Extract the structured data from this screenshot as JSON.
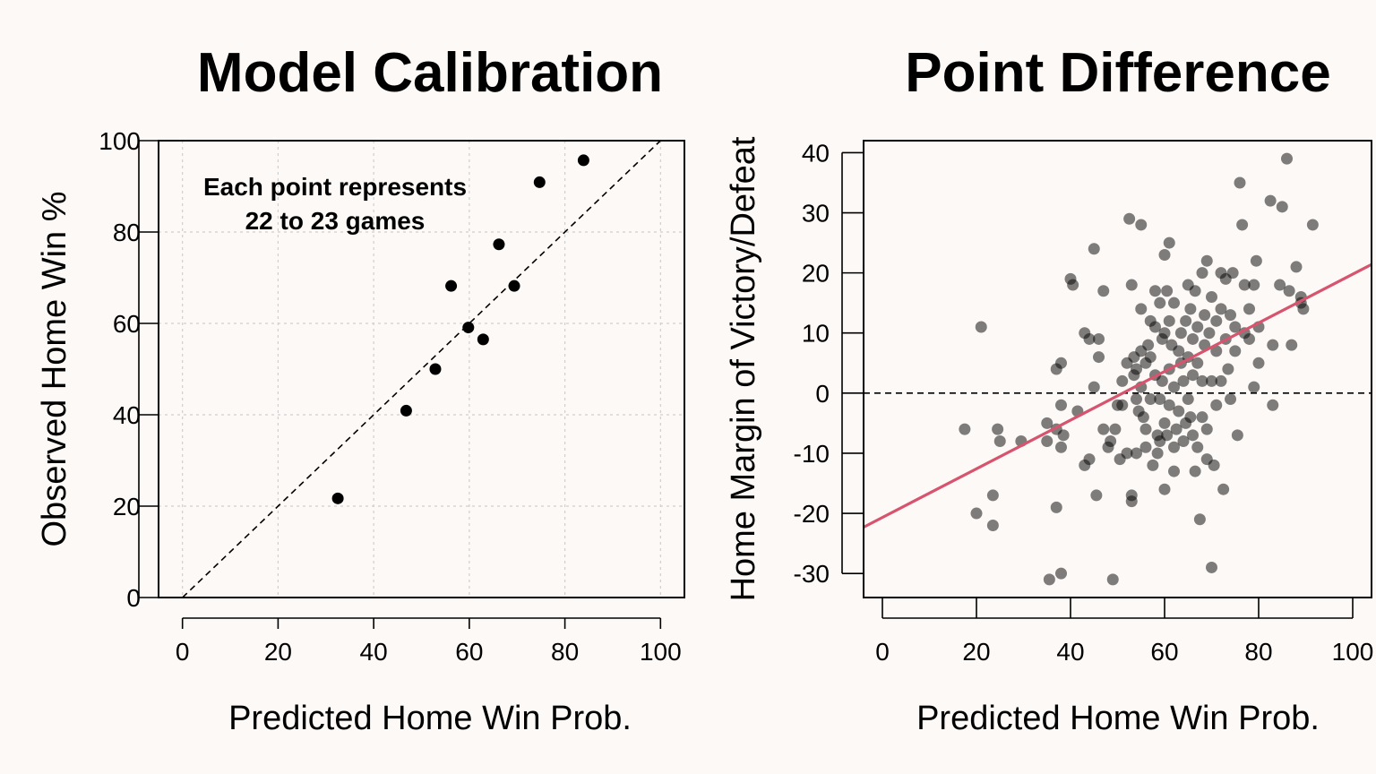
{
  "chart_data": [
    {
      "type": "scatter",
      "title": "Model Calibration",
      "xlabel": "Predicted Home Win Prob.",
      "ylabel": "Observed Home Win %",
      "xlim": [
        -5,
        105
      ],
      "ylim": [
        0,
        100
      ],
      "xticks": [
        0,
        20,
        40,
        60,
        80,
        100
      ],
      "yticks": [
        0,
        20,
        40,
        60,
        80,
        100
      ],
      "grid": true,
      "reference_line": "y = x (dashed)",
      "annotation": [
        "Each point represents",
        "22 to 23 games"
      ],
      "points": [
        {
          "x": 32.5,
          "y": 21.7
        },
        {
          "x": 46.8,
          "y": 40.9
        },
        {
          "x": 52.9,
          "y": 50.0
        },
        {
          "x": 56.2,
          "y": 68.2
        },
        {
          "x": 59.8,
          "y": 59.1
        },
        {
          "x": 62.9,
          "y": 56.5
        },
        {
          "x": 66.2,
          "y": 77.3
        },
        {
          "x": 69.4,
          "y": 68.2
        },
        {
          "x": 74.7,
          "y": 90.9
        },
        {
          "x": 83.9,
          "y": 95.7
        }
      ]
    },
    {
      "type": "scatter",
      "title": "Point Difference",
      "xlabel": "Predicted Home Win Prob.",
      "ylabel": "Home Margin of Victory/Defeat",
      "xlim": [
        -4,
        104
      ],
      "ylim": [
        -34,
        42
      ],
      "xticks": [
        0,
        20,
        40,
        60,
        80,
        100
      ],
      "yticks": [
        -30,
        -20,
        -10,
        0,
        10,
        20,
        30,
        40
      ],
      "grid": false,
      "reference_line": "y = 0 (dashed)",
      "fit_line": {
        "color": "#d6546e",
        "x": [
          -4,
          104
        ],
        "y": [
          -22.3,
          21.4
        ]
      },
      "points": [
        {
          "x": 17.5,
          "y": -6
        },
        {
          "x": 21,
          "y": 11
        },
        {
          "x": 20,
          "y": -20
        },
        {
          "x": 23.5,
          "y": -17
        },
        {
          "x": 23.5,
          "y": -22
        },
        {
          "x": 24.5,
          "y": -6
        },
        {
          "x": 25,
          "y": -8
        },
        {
          "x": 29.5,
          "y": -8
        },
        {
          "x": 35.5,
          "y": -31
        },
        {
          "x": 38,
          "y": -30
        },
        {
          "x": 35,
          "y": -5
        },
        {
          "x": 35,
          "y": -8
        },
        {
          "x": 37,
          "y": -19
        },
        {
          "x": 37,
          "y": -6
        },
        {
          "x": 37,
          "y": 4
        },
        {
          "x": 38,
          "y": 5
        },
        {
          "x": 38,
          "y": -2
        },
        {
          "x": 38,
          "y": -9
        },
        {
          "x": 38.5,
          "y": -7
        },
        {
          "x": 40,
          "y": 19
        },
        {
          "x": 40.5,
          "y": 18
        },
        {
          "x": 41.5,
          "y": -3
        },
        {
          "x": 43,
          "y": 10
        },
        {
          "x": 43,
          "y": -12
        },
        {
          "x": 44,
          "y": 9
        },
        {
          "x": 44,
          "y": -11
        },
        {
          "x": 45,
          "y": 24
        },
        {
          "x": 45,
          "y": 1
        },
        {
          "x": 45.5,
          "y": -17
        },
        {
          "x": 46,
          "y": 6
        },
        {
          "x": 46,
          "y": 9
        },
        {
          "x": 47,
          "y": 17
        },
        {
          "x": 47,
          "y": -6
        },
        {
          "x": 48,
          "y": -9
        },
        {
          "x": 48.5,
          "y": -8
        },
        {
          "x": 49,
          "y": -31
        },
        {
          "x": 49.5,
          "y": -6
        },
        {
          "x": 50,
          "y": -2
        },
        {
          "x": 50.5,
          "y": -11
        },
        {
          "x": 51,
          "y": -2
        },
        {
          "x": 51,
          "y": 2
        },
        {
          "x": 52,
          "y": 5
        },
        {
          "x": 52,
          "y": -10
        },
        {
          "x": 52.5,
          "y": 29
        },
        {
          "x": 53,
          "y": 18
        },
        {
          "x": 53,
          "y": -17
        },
        {
          "x": 53,
          "y": -18
        },
        {
          "x": 53.5,
          "y": 6
        },
        {
          "x": 53.5,
          "y": 3
        },
        {
          "x": 54,
          "y": 4
        },
        {
          "x": 54,
          "y": -1
        },
        {
          "x": 54,
          "y": -10
        },
        {
          "x": 54.5,
          "y": -3
        },
        {
          "x": 55,
          "y": 28
        },
        {
          "x": 55,
          "y": 14
        },
        {
          "x": 55,
          "y": 7
        },
        {
          "x": 55,
          "y": 1
        },
        {
          "x": 55.5,
          "y": -4
        },
        {
          "x": 56,
          "y": -9
        },
        {
          "x": 56,
          "y": -6
        },
        {
          "x": 56,
          "y": 5
        },
        {
          "x": 56.5,
          "y": 8
        },
        {
          "x": 57,
          "y": 12
        },
        {
          "x": 57,
          "y": -1
        },
        {
          "x": 57,
          "y": 6
        },
        {
          "x": 57.5,
          "y": -12
        },
        {
          "x": 58,
          "y": 17
        },
        {
          "x": 58,
          "y": 11
        },
        {
          "x": 58,
          "y": 3
        },
        {
          "x": 58.5,
          "y": -7
        },
        {
          "x": 58.5,
          "y": -10
        },
        {
          "x": 59,
          "y": 15
        },
        {
          "x": 59,
          "y": -8
        },
        {
          "x": 59,
          "y": -1
        },
        {
          "x": 59.5,
          "y": 2
        },
        {
          "x": 59.5,
          "y": 9
        },
        {
          "x": 60,
          "y": 23
        },
        {
          "x": 60,
          "y": -16
        },
        {
          "x": 60,
          "y": -5
        },
        {
          "x": 60,
          "y": 10
        },
        {
          "x": 60.5,
          "y": 17
        },
        {
          "x": 60.5,
          "y": -7
        },
        {
          "x": 61,
          "y": 25
        },
        {
          "x": 61,
          "y": 12
        },
        {
          "x": 61,
          "y": -2
        },
        {
          "x": 61,
          "y": 4
        },
        {
          "x": 61.5,
          "y": 8
        },
        {
          "x": 62,
          "y": -9
        },
        {
          "x": 62,
          "y": -13
        },
        {
          "x": 62,
          "y": 15
        },
        {
          "x": 62,
          "y": 1
        },
        {
          "x": 62.5,
          "y": -6
        },
        {
          "x": 63,
          "y": 7
        },
        {
          "x": 63,
          "y": -3
        },
        {
          "x": 63.5,
          "y": 10
        },
        {
          "x": 63.5,
          "y": 5
        },
        {
          "x": 64,
          "y": -8
        },
        {
          "x": 64,
          "y": 2
        },
        {
          "x": 64.5,
          "y": -5
        },
        {
          "x": 64.5,
          "y": 12
        },
        {
          "x": 65,
          "y": 18
        },
        {
          "x": 65,
          "y": -1
        },
        {
          "x": 65,
          "y": 6
        },
        {
          "x": 65.5,
          "y": -4
        },
        {
          "x": 65.5,
          "y": 14
        },
        {
          "x": 66,
          "y": 9
        },
        {
          "x": 66,
          "y": 3
        },
        {
          "x": 66,
          "y": -7
        },
        {
          "x": 66.5,
          "y": -13
        },
        {
          "x": 66.5,
          "y": 17
        },
        {
          "x": 67,
          "y": 11
        },
        {
          "x": 67,
          "y": -9
        },
        {
          "x": 67,
          "y": 5
        },
        {
          "x": 67.5,
          "y": -21
        },
        {
          "x": 68,
          "y": 20
        },
        {
          "x": 68,
          "y": 2
        },
        {
          "x": 68,
          "y": -4
        },
        {
          "x": 68.5,
          "y": 8
        },
        {
          "x": 68.5,
          "y": 13
        },
        {
          "x": 69,
          "y": 22
        },
        {
          "x": 69,
          "y": -11
        },
        {
          "x": 69,
          "y": -6
        },
        {
          "x": 69.5,
          "y": 10
        },
        {
          "x": 70,
          "y": -29
        },
        {
          "x": 70,
          "y": 16
        },
        {
          "x": 70,
          "y": 2
        },
        {
          "x": 70.5,
          "y": -12
        },
        {
          "x": 71,
          "y": 12
        },
        {
          "x": 71,
          "y": 7
        },
        {
          "x": 71,
          "y": -2
        },
        {
          "x": 72,
          "y": 20
        },
        {
          "x": 72,
          "y": 14
        },
        {
          "x": 72,
          "y": 2
        },
        {
          "x": 72.5,
          "y": -16
        },
        {
          "x": 73,
          "y": 19
        },
        {
          "x": 73,
          "y": 9
        },
        {
          "x": 73.5,
          "y": 4
        },
        {
          "x": 74,
          "y": 13
        },
        {
          "x": 74,
          "y": -1
        },
        {
          "x": 74.5,
          "y": 20
        },
        {
          "x": 75,
          "y": 7
        },
        {
          "x": 75,
          "y": 11
        },
        {
          "x": 75.5,
          "y": -7
        },
        {
          "x": 76,
          "y": 35
        },
        {
          "x": 76.5,
          "y": 28
        },
        {
          "x": 77,
          "y": 18
        },
        {
          "x": 77,
          "y": 10
        },
        {
          "x": 78,
          "y": 14
        },
        {
          "x": 78,
          "y": 9
        },
        {
          "x": 79,
          "y": 18
        },
        {
          "x": 79,
          "y": 1
        },
        {
          "x": 79.5,
          "y": 22
        },
        {
          "x": 80,
          "y": 5
        },
        {
          "x": 80,
          "y": 11
        },
        {
          "x": 83,
          "y": -2
        },
        {
          "x": 82.5,
          "y": 32
        },
        {
          "x": 83,
          "y": 8
        },
        {
          "x": 84.5,
          "y": 18
        },
        {
          "x": 85,
          "y": 31
        },
        {
          "x": 86,
          "y": 39
        },
        {
          "x": 86.5,
          "y": 17
        },
        {
          "x": 87,
          "y": 8
        },
        {
          "x": 88,
          "y": 21
        },
        {
          "x": 89,
          "y": 15
        },
        {
          "x": 89,
          "y": 16
        },
        {
          "x": 89.5,
          "y": 14
        },
        {
          "x": 91.5,
          "y": 28
        }
      ]
    }
  ]
}
